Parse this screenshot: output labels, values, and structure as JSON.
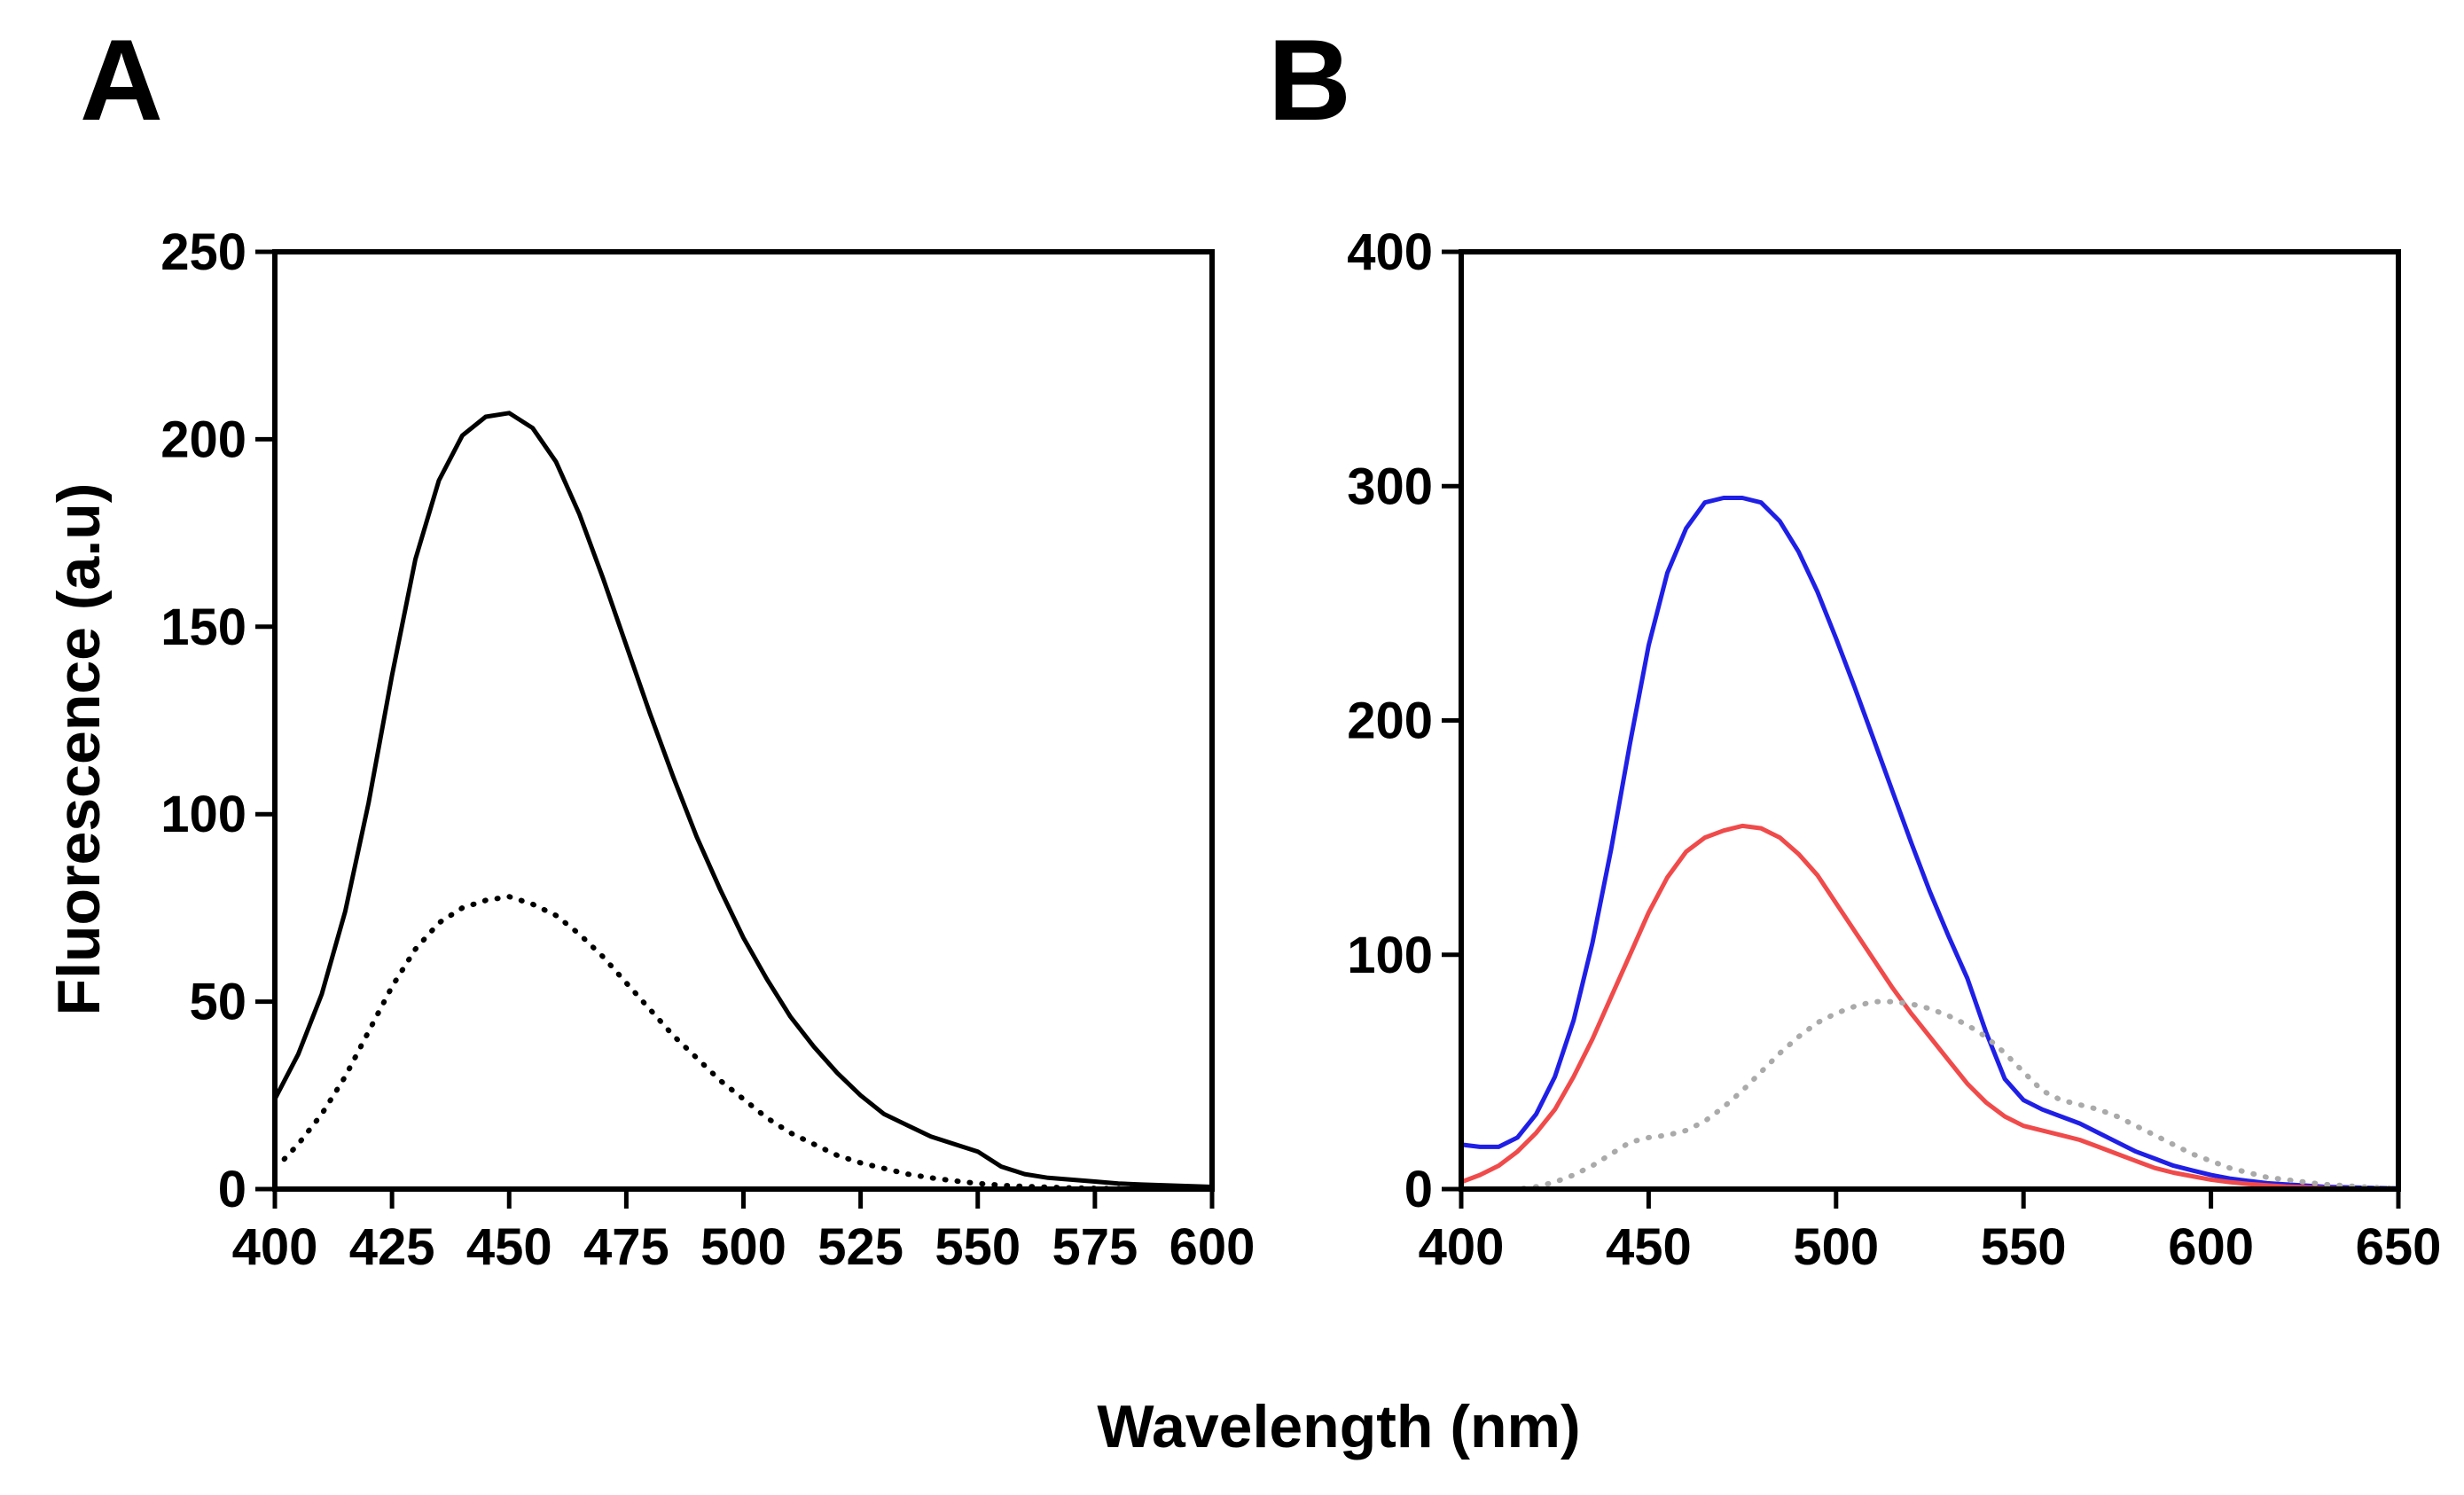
{
  "figure": {
    "shared_ylabel": "Fluorescence (a.u)",
    "shared_xlabel": "Wavelength (nm)"
  },
  "chart_data": [
    {
      "panel": "A",
      "type": "line",
      "title": "",
      "xlabel": "Wavelength (nm)",
      "ylabel": "Fluorescence (a.u)",
      "xlim": [
        400,
        600
      ],
      "ylim": [
        0,
        250
      ],
      "xticks": [
        400,
        425,
        450,
        475,
        500,
        525,
        550,
        575,
        600
      ],
      "yticks": [
        0,
        50,
        100,
        150,
        200,
        250
      ],
      "grid": false,
      "series": [
        {
          "name": "solid",
          "color": "#000000",
          "style": "solid",
          "x": [
            400,
            405,
            410,
            415,
            420,
            425,
            430,
            435,
            440,
            445,
            450,
            455,
            460,
            465,
            470,
            475,
            480,
            485,
            490,
            495,
            500,
            505,
            510,
            515,
            520,
            525,
            530,
            535,
            540,
            545,
            550,
            555,
            560,
            565,
            570,
            575,
            580,
            585,
            590,
            595,
            600
          ],
          "y": [
            24,
            36,
            52,
            74,
            103,
            137,
            168,
            189,
            201,
            206,
            207,
            203,
            194,
            180,
            163,
            145,
            127,
            110,
            94,
            80,
            67,
            56,
            46,
            38,
            31,
            25,
            20,
            17,
            14,
            12,
            10,
            6,
            4,
            3,
            2.5,
            2,
            1.5,
            1.2,
            1,
            0.8,
            0.6
          ]
        },
        {
          "name": "dotted",
          "color": "#000000",
          "style": "dotted",
          "x": [
            402,
            405,
            410,
            415,
            420,
            425,
            430,
            435,
            440,
            445,
            450,
            455,
            460,
            465,
            470,
            475,
            480,
            485,
            490,
            495,
            500,
            505,
            510,
            515,
            520,
            525,
            530,
            535,
            540,
            545,
            550,
            555,
            560,
            565,
            570,
            575,
            580,
            585,
            590,
            595,
            600
          ],
          "y": [
            8,
            12,
            20,
            30,
            42,
            54,
            64,
            71,
            75,
            77,
            78,
            76,
            73,
            68,
            62,
            55,
            48,
            41,
            35,
            29,
            24,
            19,
            15,
            12,
            9,
            7,
            5.5,
            4,
            3,
            2.2,
            1.5,
            1,
            0.7,
            0.5,
            0.3,
            0.2,
            0.1,
            0.1,
            0,
            0,
            0
          ]
        }
      ]
    },
    {
      "panel": "B",
      "type": "line",
      "title": "",
      "xlabel": "Wavelength (nm)",
      "ylabel": "",
      "xlim": [
        400,
        650
      ],
      "ylim": [
        0,
        400
      ],
      "xticks": [
        400,
        450,
        500,
        550,
        600,
        650
      ],
      "yticks": [
        0,
        100,
        200,
        300,
        400
      ],
      "grid": false,
      "series": [
        {
          "name": "blue",
          "color": "#1f1fe6",
          "style": "solid",
          "x": [
            400,
            405,
            410,
            415,
            420,
            425,
            430,
            435,
            440,
            445,
            450,
            455,
            460,
            465,
            470,
            475,
            480,
            485,
            490,
            495,
            500,
            505,
            510,
            515,
            520,
            525,
            530,
            535,
            540,
            545,
            550,
            555,
            560,
            565,
            570,
            575,
            580,
            585,
            590,
            595,
            600,
            605,
            610,
            615,
            620,
            625,
            630,
            635,
            640,
            645,
            650
          ],
          "y": [
            19,
            18,
            18,
            22,
            32,
            48,
            72,
            105,
            145,
            190,
            232,
            263,
            282,
            293,
            295,
            295,
            293,
            285,
            272,
            255,
            235,
            214,
            192,
            170,
            148,
            127,
            108,
            90,
            67,
            47,
            38,
            34,
            31,
            28,
            24,
            20,
            16,
            13,
            10,
            8,
            6,
            4.5,
            3.5,
            2.5,
            2,
            1.5,
            1,
            0.8,
            0.6,
            0.4,
            0.3
          ]
        },
        {
          "name": "red",
          "color": "#f04a4a",
          "style": "solid",
          "x": [
            400,
            405,
            410,
            415,
            420,
            425,
            430,
            435,
            440,
            445,
            450,
            455,
            460,
            465,
            470,
            475,
            480,
            485,
            490,
            495,
            500,
            505,
            510,
            515,
            520,
            525,
            530,
            535,
            540,
            545,
            550,
            555,
            560,
            565,
            570,
            575,
            580,
            585,
            590,
            595,
            600,
            605,
            610,
            615,
            620,
            625,
            630,
            635,
            640,
            645,
            650
          ],
          "y": [
            3,
            6,
            10,
            16,
            24,
            34,
            48,
            64,
            82,
            100,
            118,
            133,
            144,
            150,
            153,
            155,
            154,
            150,
            143,
            134,
            122,
            110,
            98,
            86,
            75,
            65,
            55,
            45,
            37,
            31,
            27,
            25,
            23,
            21,
            18,
            15,
            12,
            9,
            7,
            5.5,
            4,
            3,
            2.2,
            1.6,
            1.1,
            0.8,
            0.5,
            0.3,
            0.2,
            0.1,
            0
          ]
        },
        {
          "name": "grey-dotted",
          "color": "#aaaaaa",
          "style": "dotted",
          "x": [
            400,
            405,
            410,
            415,
            420,
            425,
            430,
            435,
            440,
            445,
            450,
            455,
            460,
            465,
            470,
            475,
            480,
            485,
            490,
            495,
            500,
            505,
            510,
            515,
            520,
            525,
            530,
            535,
            540,
            545,
            550,
            555,
            560,
            565,
            570,
            575,
            580,
            585,
            590,
            595,
            600,
            605,
            610,
            615,
            620,
            625,
            630,
            635,
            640,
            645,
            650
          ],
          "y": [
            0,
            0,
            0,
            0,
            1,
            3,
            6,
            10,
            15,
            20,
            22,
            23,
            25,
            29,
            35,
            42,
            50,
            58,
            65,
            71,
            75,
            78,
            80,
            80,
            79,
            77,
            74,
            70,
            65,
            58,
            50,
            42,
            38,
            36,
            34,
            31,
            27,
            23,
            19,
            15,
            12,
            9,
            7,
            5,
            4,
            3,
            2,
            1.5,
            1,
            0.6,
            0.3
          ]
        }
      ]
    }
  ]
}
